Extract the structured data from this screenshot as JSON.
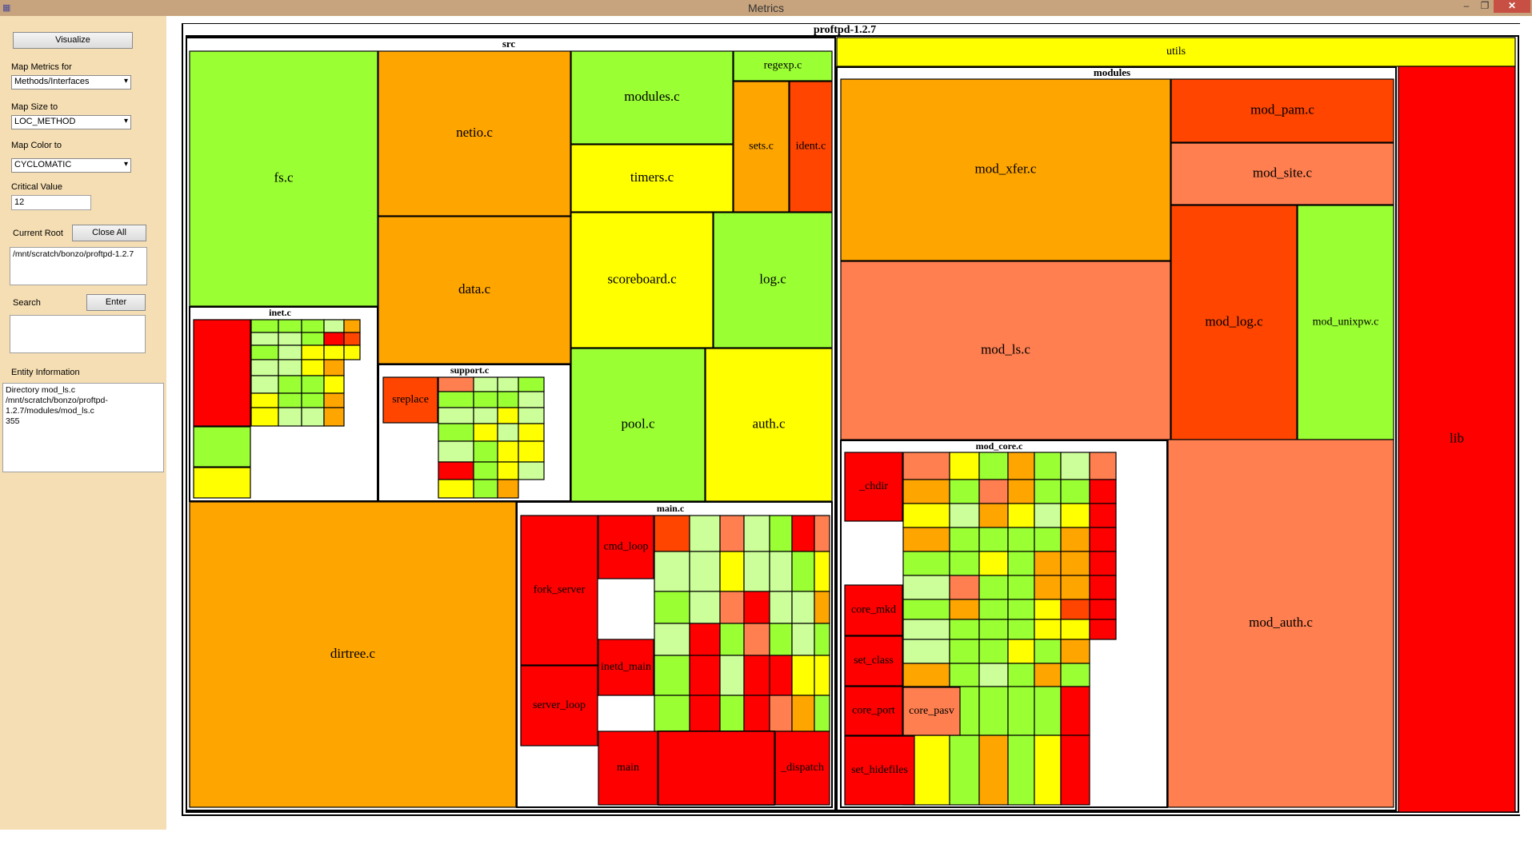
{
  "window": {
    "title": "Metrics",
    "minimize": "–",
    "restore": "❐",
    "close": "✕",
    "app_icon": "app-icon"
  },
  "sidebar": {
    "visualize_label": "Visualize",
    "map_metrics_label": "Map Metrics for",
    "map_metrics_value": "Methods/Interfaces",
    "map_size_label": "Map Size to",
    "map_size_value": "LOC_METHOD",
    "map_color_label": "Map Color to",
    "map_color_value": "CYCLOMATIC",
    "critical_label": "Critical Value",
    "critical_value": "12",
    "current_root_label": "Current Root",
    "close_all_label": "Close All",
    "current_root_value": "/mnt/scratch/bonzo/proftpd-1.2.7",
    "search_label": "Search",
    "enter_label": "Enter",
    "search_value": "",
    "entity_info_label": "Entity Information",
    "entity_info_value": "Directory mod_ls.c\n/mnt/scratch/bonzo/proftpd-\n1.2.7/modules/mod_ls.c\n355"
  },
  "colors": {
    "red": "#ff0000",
    "redorange": "#ff4500",
    "coral": "#ff7f50",
    "orange": "#ffa500",
    "yellow": "#ffff00",
    "green": "#9aff33",
    "lightgreen": "#ccff99"
  },
  "treemap": {
    "root_label": "proftpd-1.2.7",
    "groups": [
      {
        "label": "src"
      },
      {
        "label": "modules"
      },
      {
        "label": "inet.c"
      },
      {
        "label": "support.c"
      },
      {
        "label": "main.c"
      },
      {
        "label": "mod_core.c"
      }
    ],
    "cells": [
      {
        "label": "fs.c",
        "color": "green"
      },
      {
        "label": "netio.c",
        "color": "orange"
      },
      {
        "label": "data.c",
        "color": "orange"
      },
      {
        "label": "modules.c",
        "color": "green"
      },
      {
        "label": "timers.c",
        "color": "yellow"
      },
      {
        "label": "regexp.c",
        "color": "green"
      },
      {
        "label": "sets.c",
        "color": "orange"
      },
      {
        "label": "ident.c",
        "color": "redorange"
      },
      {
        "label": "scoreboard.c",
        "color": "yellow"
      },
      {
        "label": "log.c",
        "color": "green"
      },
      {
        "label": "pool.c",
        "color": "green"
      },
      {
        "label": "auth.c",
        "color": "yellow"
      },
      {
        "label": "dirtree.c",
        "color": "orange"
      },
      {
        "label": "sreplace",
        "color": "redorange"
      },
      {
        "label": "fork_server",
        "color": "red"
      },
      {
        "label": "cmd_loop",
        "color": "red"
      },
      {
        "label": "inetd_main",
        "color": "red"
      },
      {
        "label": "server_loop",
        "color": "red"
      },
      {
        "label": "main",
        "color": "red"
      },
      {
        "label": "_dispatch",
        "color": "red"
      },
      {
        "label": "utils",
        "color": "yellow"
      },
      {
        "label": "mod_xfer.c",
        "color": "orange"
      },
      {
        "label": "mod_ls.c",
        "color": "coral"
      },
      {
        "label": "mod_pam.c",
        "color": "redorange"
      },
      {
        "label": "mod_site.c",
        "color": "coral"
      },
      {
        "label": "mod_log.c",
        "color": "redorange"
      },
      {
        "label": "mod_unixpw.c",
        "color": "green"
      },
      {
        "label": "mod_auth.c",
        "color": "coral"
      },
      {
        "label": "lib",
        "color": "red"
      },
      {
        "label": "_chdir",
        "color": "red"
      },
      {
        "label": "core_mkd",
        "color": "red"
      },
      {
        "label": "set_class",
        "color": "red"
      },
      {
        "label": "core_port",
        "color": "red"
      },
      {
        "label": "core_pasv",
        "color": "coral"
      },
      {
        "label": "set_hidefiles",
        "color": "red"
      }
    ],
    "minor_cells": [
      "red",
      "green",
      "yellow",
      "green",
      "lightgreen",
      "green",
      "lightgreen",
      "lightgreen",
      "yellow",
      "yellow",
      "green",
      "lightgreen",
      "lightgreen",
      "lightgreen",
      "green",
      "green",
      "lightgreen",
      "green",
      "green",
      "yellow",
      "yellow",
      "green",
      "green",
      "lightgreen",
      "lightgreen",
      "red",
      "yellow",
      "orange",
      "yellow",
      "orange",
      "orange",
      "orange",
      "redorange",
      "yellow",
      "coral",
      "green",
      "lightgreen",
      "green",
      "lightgreen",
      "red",
      "yellow",
      "lightgreen",
      "green",
      "lightgreen",
      "yellow",
      "green",
      "green",
      "green",
      "lightgreen",
      "green",
      "yellow",
      "lightgreen",
      "yellow",
      "yellow",
      "orange",
      "green",
      "lightgreen",
      "lightgreen",
      "yellow",
      "yellow",
      "lightgreen",
      "redorange",
      "lightgreen",
      "green",
      "lightgreen",
      "green",
      "green",
      "lightgreen",
      "lightgreen",
      "lightgreen",
      "red",
      "red",
      "red",
      "coral",
      "yellow",
      "coral",
      "green",
      "lightgreen",
      "green",
      "lightgreen",
      "lightgreen",
      "red",
      "coral",
      "red",
      "red",
      "green",
      "lightgreen",
      "lightgreen",
      "green",
      "red",
      "coral",
      "red",
      "green",
      "lightgreen",
      "lightgreen",
      "yellow",
      "orange",
      "coral",
      "yellow",
      "orange",
      "green",
      "yellow",
      "green",
      "coral",
      "green",
      "yellow",
      "yellow",
      "lightgreen",
      "lightgreen",
      "red",
      "red",
      "green",
      "red",
      "red",
      "red",
      "red",
      "coral",
      "orange",
      "yellow",
      "orange",
      "green",
      "lightgreen",
      "green",
      "lightgreen",
      "lightgreen",
      "orange",
      "orange",
      "yellow",
      "yellow",
      "green",
      "lightgreen",
      "green",
      "green",
      "coral",
      "orange",
      "green",
      "green",
      "green",
      "green",
      "green",
      "green",
      "coral",
      "orange",
      "green",
      "yellow",
      "green",
      "green",
      "green",
      "green",
      "lightgreen",
      "green",
      "orange",
      "orange",
      "orange",
      "yellow",
      "green",
      "green",
      "green",
      "green",
      "green",
      "yellow",
      "green",
      "green",
      "green",
      "green",
      "green",
      "lightgreen",
      "green",
      "orange",
      "orange",
      "yellow",
      "yellow",
      "green",
      "orange",
      "green",
      "yellow",
      "lightgreen",
      "green",
      "yellow",
      "orange",
      "orange",
      "orange",
      "redorange",
      "yellow",
      "orange",
      "green",
      "red",
      "red",
      "coral",
      "red",
      "red",
      "red",
      "red",
      "red",
      "red",
      "red"
    ]
  }
}
